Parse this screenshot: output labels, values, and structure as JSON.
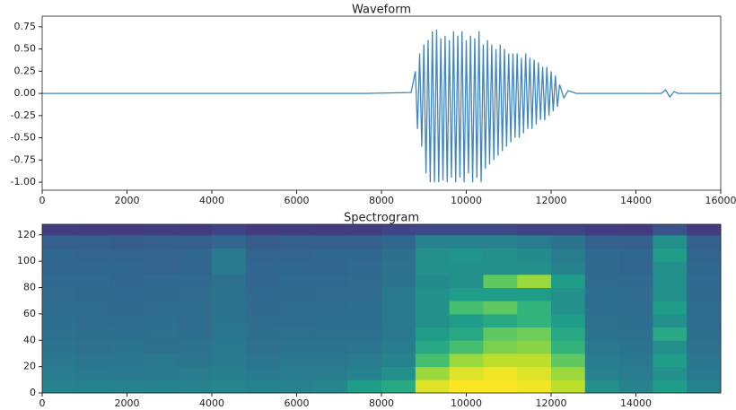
{
  "chart_data": [
    {
      "type": "line",
      "title": "Waveform",
      "color": "#3f86c0",
      "x": [
        0,
        7000,
        7600,
        8700,
        8800,
        8850,
        8900,
        8950,
        9000,
        9050,
        9100,
        9150,
        9200,
        9250,
        9300,
        9350,
        9400,
        9450,
        9500,
        9550,
        9600,
        9650,
        9700,
        9750,
        9800,
        9850,
        9900,
        9950,
        10000,
        10050,
        10100,
        10150,
        10200,
        10250,
        10300,
        10350,
        10400,
        10450,
        10500,
        10550,
        10600,
        10650,
        10700,
        10750,
        10800,
        10850,
        10900,
        10950,
        11000,
        11050,
        11100,
        11150,
        11200,
        11250,
        11300,
        11350,
        11400,
        11450,
        11500,
        11550,
        11600,
        11650,
        11700,
        11750,
        11800,
        11850,
        11900,
        11950,
        12000,
        12050,
        12100,
        12150,
        12200,
        12300,
        12400,
        12600,
        14600,
        14700,
        14800,
        14900,
        15000,
        16000
      ],
      "values": [
        0,
        0,
        0,
        0.01,
        0.25,
        -0.4,
        0.45,
        -0.6,
        0.55,
        -0.9,
        0.6,
        -1.0,
        0.7,
        -1.0,
        0.72,
        -1.0,
        0.62,
        -0.98,
        0.65,
        -1.0,
        0.6,
        -0.95,
        0.7,
        -1.0,
        0.65,
        -0.95,
        0.7,
        -1.0,
        0.6,
        -0.9,
        0.65,
        -1.0,
        0.62,
        -0.95,
        0.7,
        -1.0,
        0.55,
        -0.85,
        0.6,
        -0.8,
        0.55,
        -0.75,
        0.5,
        -0.7,
        0.55,
        -0.65,
        0.5,
        -0.6,
        0.45,
        -0.55,
        0.45,
        -0.5,
        0.45,
        -0.5,
        0.4,
        -0.45,
        0.45,
        -0.4,
        0.4,
        -0.4,
        0.38,
        -0.35,
        0.35,
        -0.3,
        0.3,
        -0.3,
        0.3,
        -0.25,
        0.25,
        -0.2,
        0.2,
        -0.15,
        0.1,
        -0.05,
        0.03,
        0,
        0,
        0.04,
        -0.04,
        0.02,
        0,
        0
      ],
      "xlim": [
        0,
        16000
      ],
      "xticks": [
        0,
        2000,
        4000,
        6000,
        8000,
        10000,
        12000,
        14000,
        16000
      ],
      "ylim": [
        -1.09,
        0.87
      ],
      "yticks": [
        {
          "value": -1,
          "label": "-1.00"
        },
        {
          "value": -0.75,
          "label": "-0.75"
        },
        {
          "value": -0.5,
          "label": "-0.50"
        },
        {
          "value": -0.25,
          "label": "-0.25"
        },
        {
          "value": 0,
          "label": "0.00"
        },
        {
          "value": 0.25,
          "label": "0.25"
        },
        {
          "value": 0.5,
          "label": "0.50"
        },
        {
          "value": 0.75,
          "label": "0.75"
        }
      ]
    },
    {
      "type": "heatmap",
      "title": "Spectrogram",
      "colormap": "viridis",
      "xbins": [
        0,
        800,
        1600,
        2400,
        3200,
        4000,
        4800,
        5600,
        6400,
        7200,
        8000,
        8800,
        9600,
        10400,
        11200,
        12000,
        12800,
        13600,
        14400,
        15200,
        16000
      ],
      "ybins": [
        0,
        10,
        20,
        30,
        40,
        50,
        60,
        70,
        80,
        90,
        100,
        110,
        120,
        128
      ],
      "values": [
        [
          0.45,
          0.42,
          0.4,
          0.38,
          0.37,
          0.36,
          0.35,
          0.35,
          0.34,
          0.33,
          0.33,
          0.3,
          0.18
        ],
        [
          0.44,
          0.41,
          0.39,
          0.37,
          0.36,
          0.35,
          0.35,
          0.34,
          0.34,
          0.33,
          0.32,
          0.3,
          0.17
        ],
        [
          0.45,
          0.4,
          0.39,
          0.38,
          0.36,
          0.35,
          0.34,
          0.34,
          0.33,
          0.33,
          0.32,
          0.29,
          0.17
        ],
        [
          0.44,
          0.41,
          0.4,
          0.37,
          0.37,
          0.36,
          0.35,
          0.34,
          0.34,
          0.32,
          0.32,
          0.3,
          0.18
        ],
        [
          0.45,
          0.42,
          0.39,
          0.38,
          0.36,
          0.35,
          0.35,
          0.35,
          0.34,
          0.33,
          0.33,
          0.3,
          0.17
        ],
        [
          0.46,
          0.43,
          0.41,
          0.4,
          0.39,
          0.38,
          0.38,
          0.38,
          0.37,
          0.4,
          0.4,
          0.33,
          0.2
        ],
        [
          0.44,
          0.41,
          0.39,
          0.37,
          0.36,
          0.35,
          0.34,
          0.34,
          0.33,
          0.33,
          0.32,
          0.29,
          0.17
        ],
        [
          0.45,
          0.42,
          0.4,
          0.38,
          0.37,
          0.35,
          0.35,
          0.34,
          0.34,
          0.33,
          0.32,
          0.3,
          0.18
        ],
        [
          0.46,
          0.42,
          0.4,
          0.38,
          0.37,
          0.36,
          0.35,
          0.35,
          0.34,
          0.33,
          0.33,
          0.3,
          0.17
        ],
        [
          0.55,
          0.45,
          0.42,
          0.39,
          0.37,
          0.36,
          0.36,
          0.35,
          0.35,
          0.34,
          0.33,
          0.3,
          0.18
        ],
        [
          0.6,
          0.5,
          0.45,
          0.42,
          0.4,
          0.4,
          0.4,
          0.4,
          0.38,
          0.37,
          0.36,
          0.33,
          0.2
        ],
        [
          0.95,
          0.85,
          0.7,
          0.6,
          0.55,
          0.5,
          0.5,
          0.5,
          0.48,
          0.5,
          0.5,
          0.45,
          0.22
        ],
        [
          1.0,
          0.95,
          0.85,
          0.7,
          0.6,
          0.55,
          0.7,
          0.55,
          0.5,
          0.5,
          0.52,
          0.45,
          0.22
        ],
        [
          1.0,
          0.98,
          0.9,
          0.8,
          0.75,
          0.6,
          0.75,
          0.55,
          0.75,
          0.5,
          0.5,
          0.45,
          0.22
        ],
        [
          0.98,
          0.95,
          0.9,
          0.82,
          0.78,
          0.65,
          0.65,
          0.55,
          0.85,
          0.5,
          0.48,
          0.42,
          0.2
        ],
        [
          0.9,
          0.85,
          0.75,
          0.65,
          0.6,
          0.55,
          0.5,
          0.5,
          0.55,
          0.45,
          0.42,
          0.38,
          0.2
        ],
        [
          0.5,
          0.45,
          0.42,
          0.4,
          0.38,
          0.37,
          0.36,
          0.36,
          0.35,
          0.34,
          0.34,
          0.31,
          0.18
        ],
        [
          0.45,
          0.42,
          0.4,
          0.38,
          0.37,
          0.36,
          0.35,
          0.35,
          0.34,
          0.33,
          0.33,
          0.3,
          0.17
        ],
        [
          0.55,
          0.5,
          0.55,
          0.5,
          0.6,
          0.5,
          0.55,
          0.5,
          0.5,
          0.5,
          0.55,
          0.5,
          0.25
        ],
        [
          0.44,
          0.41,
          0.39,
          0.37,
          0.36,
          0.35,
          0.35,
          0.34,
          0.34,
          0.33,
          0.32,
          0.3,
          0.17
        ]
      ],
      "xlim": [
        0,
        16000
      ],
      "xticks": [
        0,
        2000,
        4000,
        6000,
        8000,
        10000,
        12000,
        14000
      ],
      "ylim": [
        0,
        128
      ],
      "yticks": [
        0,
        20,
        40,
        60,
        80,
        100,
        120
      ]
    }
  ]
}
